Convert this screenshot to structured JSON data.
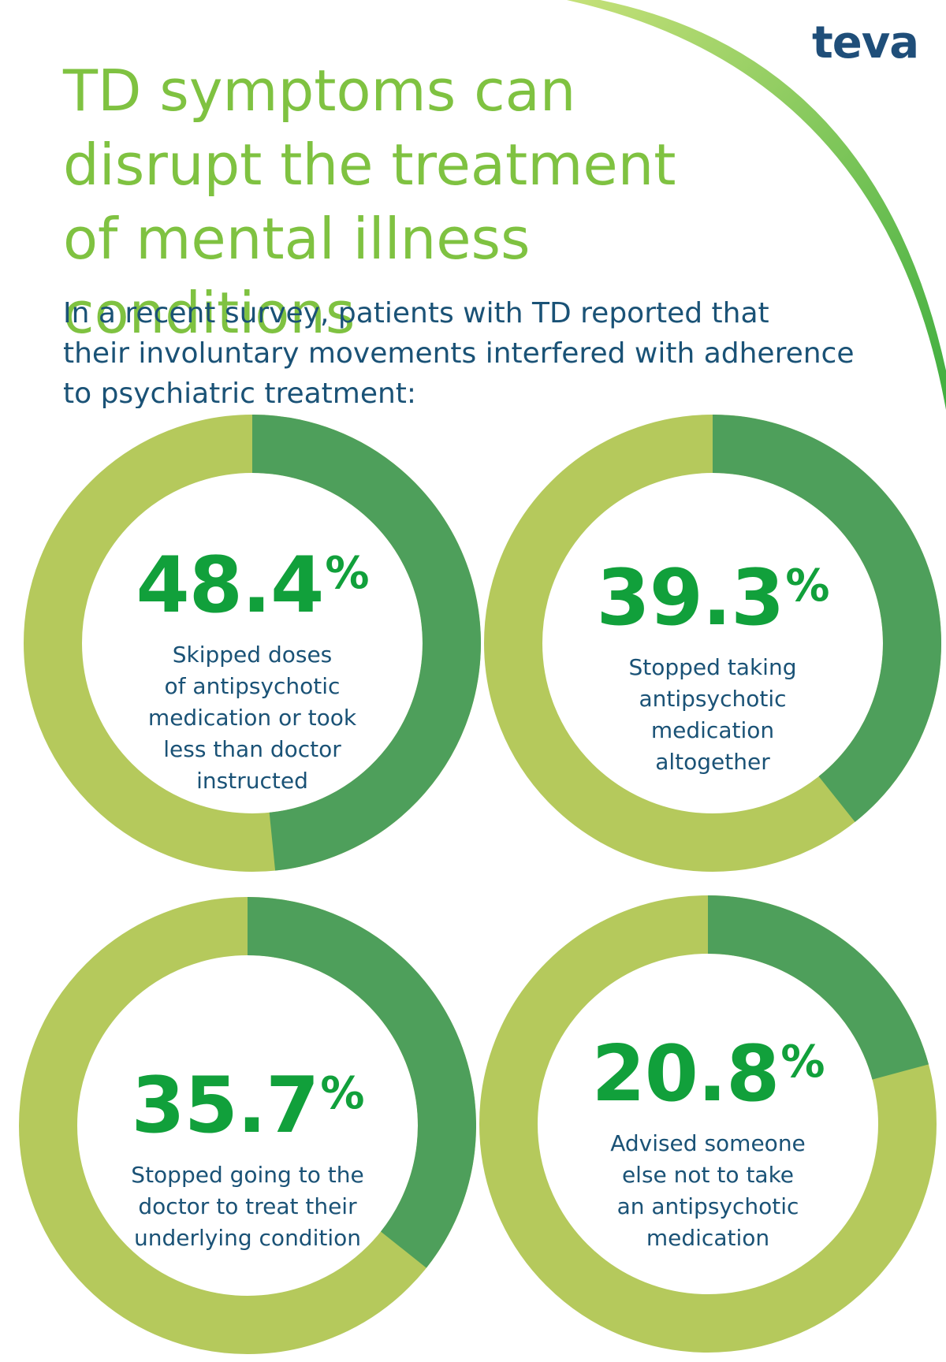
{
  "logo": "teva",
  "title_lines": [
    "TD symptoms can",
    "disrupt the treatment",
    "of mental illness conditions"
  ],
  "subtitle_lines": [
    "In a recent survey, patients with TD reported that",
    "their involuntary movements interfered with adherence",
    "to psychiatric treatment:"
  ],
  "colors": {
    "accent_title": "#7fc241",
    "percent_text": "#11a03b",
    "body_text": "#1a5276",
    "logo": "#1f4e79",
    "ring_value": "#4e9f5b",
    "ring_rest": "#b5c95c"
  },
  "chart_data": {
    "type": "pie",
    "charts": [
      {
        "percent_label": "48.4",
        "unit": "%",
        "value": 48.4,
        "description": [
          "Skipped doses",
          "of antipsychotic",
          "medication or took",
          "less than doctor",
          "instructed"
        ]
      },
      {
        "percent_label": "39.3",
        "unit": "%",
        "value": 39.3,
        "description": [
          "Stopped taking",
          "antipsychotic",
          "medication",
          "altogether"
        ]
      },
      {
        "percent_label": "35.7",
        "unit": "%",
        "value": 35.7,
        "description": [
          "Stopped going to the",
          "doctor to treat their",
          "underlying condition"
        ]
      },
      {
        "percent_label": "20.8",
        "unit": "%",
        "value": 20.8,
        "description": [
          "Advised someone",
          "else not to take",
          "an antipsychotic",
          "medication"
        ]
      }
    ]
  }
}
